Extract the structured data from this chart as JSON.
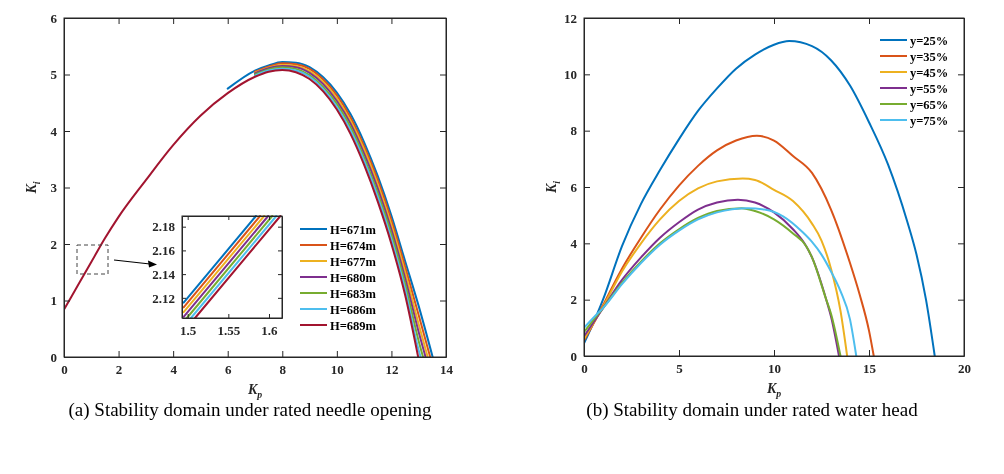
{
  "chart_data": [
    {
      "type": "line",
      "title": "(a) Stability domain under rated needle opening",
      "xlabel": "K$_{p}$",
      "ylabel": "K$_{i}$",
      "xlim": [
        0,
        14
      ],
      "xticks": [
        0,
        2,
        4,
        6,
        8,
        10,
        12,
        14
      ],
      "ylim": [
        0,
        6
      ],
      "yticks": [
        0,
        1,
        2,
        3,
        4,
        5,
        6
      ],
      "grid": false,
      "legend": "bottom right",
      "line_style": "solid",
      "marker": "none",
      "series": [
        {
          "name": "H=671m",
          "color": "#0072bd",
          "x": [
            6,
            7,
            7.5,
            8,
            8.5,
            9,
            9.5,
            10,
            10.5,
            11,
            11.5,
            12,
            12.5,
            13,
            13.51
          ],
          "values": [
            4.75,
            5.07,
            5.16,
            5.22,
            5.21,
            5.13,
            4.95,
            4.68,
            4.3,
            3.8,
            3.2,
            2.5,
            1.7,
            0.9,
            0
          ]
        },
        {
          "name": "H=674m",
          "color": "#d95319",
          "x": [
            7,
            7.5,
            8,
            8.5,
            9,
            9.5,
            10,
            10.5,
            11,
            11.5,
            12,
            12.5,
            13,
            13.42
          ],
          "values": [
            5.05,
            5.14,
            5.2,
            5.18,
            5.1,
            4.91,
            4.63,
            4.24,
            3.73,
            3.13,
            2.42,
            1.6,
            0.74,
            0
          ]
        },
        {
          "name": "H=677m",
          "color": "#edb120",
          "x": [
            7,
            7.5,
            8,
            8.5,
            9,
            9.5,
            10,
            10.5,
            11,
            11.5,
            12,
            12.5,
            13,
            13.33
          ],
          "values": [
            5.03,
            5.12,
            5.17,
            5.15,
            5.06,
            4.87,
            4.58,
            4.18,
            3.67,
            3.05,
            2.33,
            1.5,
            0.58,
            0
          ]
        },
        {
          "name": "H=680m",
          "color": "#7e2f8e",
          "x": [
            7,
            7.5,
            8,
            8.5,
            9,
            9.5,
            10,
            10.5,
            11,
            11.5,
            12,
            12.5,
            13,
            13.25
          ],
          "values": [
            5.02,
            5.11,
            5.15,
            5.13,
            5.03,
            4.83,
            4.53,
            4.13,
            3.6,
            2.98,
            2.25,
            1.4,
            0.44,
            0
          ]
        },
        {
          "name": "H=683m",
          "color": "#77ac30",
          "x": [
            7,
            7.5,
            8,
            8.5,
            9,
            9.5,
            10,
            10.5,
            11,
            11.5,
            12,
            12.5,
            13,
            13.16
          ],
          "values": [
            5,
            5.09,
            5.13,
            5.1,
            4.99,
            4.78,
            4.48,
            4.07,
            3.53,
            2.9,
            2.17,
            1.3,
            0.28,
            0
          ]
        },
        {
          "name": "H=686m",
          "color": "#4dbeee",
          "x": [
            7,
            7.5,
            8,
            8.5,
            9,
            9.5,
            10,
            10.5,
            11,
            11.5,
            12,
            12.5,
            13,
            13.07
          ],
          "values": [
            4.98,
            5.07,
            5.1,
            5.07,
            4.96,
            4.74,
            4.43,
            4.01,
            3.47,
            2.83,
            2.08,
            1.2,
            0.12,
            0
          ]
        },
        {
          "name": "H=689m",
          "color": "#a2142f",
          "x": [
            0,
            0.5,
            1,
            1.5,
            2,
            3,
            4,
            5,
            6,
            7,
            7.5,
            8,
            8.5,
            9,
            9.5,
            10,
            10.5,
            11,
            11.5,
            12,
            12.5,
            12.98
          ],
          "values": [
            0.84,
            1.26,
            1.68,
            2.1,
            2.48,
            3.13,
            3.75,
            4.27,
            4.67,
            4.96,
            5.05,
            5.08,
            5.04,
            4.92,
            4.7,
            4.38,
            3.95,
            3.4,
            2.75,
            2,
            1.1,
            0
          ]
        }
      ]
    },
    {
      "type": "line",
      "xlim": [
        1.493,
        1.616
      ],
      "xticks": [
        1.5,
        1.55,
        1.6
      ],
      "ylim": [
        2.103,
        2.189
      ],
      "yticks": [
        2.12,
        2.14,
        2.16,
        2.18
      ],
      "grid": false,
      "legend": false,
      "line_style": "solid",
      "marker": "none",
      "series": [
        {
          "color": "#0072bd",
          "x": [
            1.495,
            1.584
          ],
          "values": [
            2.116,
            2.189
          ]
        },
        {
          "color": "#d95319",
          "x": [
            1.495,
            1.589
          ],
          "values": [
            2.112,
            2.189
          ]
        },
        {
          "color": "#edb120",
          "x": [
            1.495,
            1.594
          ],
          "values": [
            2.108,
            2.189
          ]
        },
        {
          "color": "#7e2f8e",
          "x": [
            1.495,
            1.599
          ],
          "values": [
            2.104,
            2.189
          ]
        },
        {
          "color": "#77ac30",
          "x": [
            1.499,
            1.604
          ],
          "values": [
            2.103,
            2.189
          ]
        },
        {
          "color": "#4dbeee",
          "x": [
            1.504,
            1.609
          ],
          "values": [
            2.103,
            2.189
          ]
        },
        {
          "color": "#a2142f",
          "x": [
            1.509,
            1.614
          ],
          "values": [
            2.103,
            2.189
          ]
        }
      ]
    },
    {
      "type": "line",
      "title": "(b) Stability domain under rated water head",
      "xlabel": "K$_{p}$",
      "ylabel": "K$_{i}$",
      "xlim": [
        0,
        20
      ],
      "xticks": [
        0,
        5,
        10,
        15,
        20
      ],
      "ylim": [
        0,
        12
      ],
      "yticks": [
        0,
        2,
        4,
        6,
        8,
        10,
        12
      ],
      "grid": false,
      "legend": "top right",
      "line_style": "solid",
      "marker": "none",
      "series": [
        {
          "name": "y=25%",
          "color": "#0072bd",
          "x": [
            0,
            0.7,
            1,
            2,
            3,
            4,
            5,
            6,
            7,
            8,
            9,
            10,
            10.8,
            12,
            13,
            14,
            15,
            16,
            17,
            17.5,
            18,
            18.46
          ],
          "values": [
            0.45,
            1.5,
            2,
            3.9,
            5.4,
            6.6,
            7.7,
            8.7,
            9.5,
            10.2,
            10.7,
            11.05,
            11.18,
            11,
            10.5,
            9.6,
            8.3,
            6.8,
            4.8,
            3.6,
            2,
            0
          ]
        },
        {
          "name": "y=35%",
          "color": "#d95319",
          "x": [
            0,
            0.7,
            1,
            2,
            3,
            4,
            5,
            6,
            7,
            8,
            9.1,
            10,
            11,
            12,
            13,
            14,
            14.5,
            15,
            15.25
          ],
          "values": [
            0.55,
            1.4,
            1.8,
            3.1,
            4.2,
            5.2,
            6.05,
            6.75,
            7.3,
            7.65,
            7.82,
            7.65,
            7.1,
            6.5,
            5.2,
            3.3,
            2.2,
            0.9,
            0
          ]
        },
        {
          "name": "y=45%",
          "color": "#edb120",
          "x": [
            0,
            0.7,
            1,
            2,
            3,
            4,
            5,
            6,
            7,
            8.35,
            9,
            10,
            11,
            12,
            12.5,
            13,
            13.5,
            13.85
          ],
          "values": [
            0.6,
            1.4,
            1.75,
            3,
            4,
            4.85,
            5.5,
            5.95,
            6.2,
            6.3,
            6.25,
            5.9,
            5.5,
            4.7,
            4.1,
            3.1,
            1.6,
            0
          ]
        },
        {
          "name": "y=55%",
          "color": "#7e2f8e",
          "x": [
            0,
            0.7,
            1,
            2,
            3,
            4,
            5,
            6,
            7,
            8.1,
            9,
            10,
            11,
            11.6,
            12,
            12.75,
            13,
            13.42
          ],
          "values": [
            0.7,
            1.4,
            1.7,
            2.7,
            3.5,
            4.2,
            4.75,
            5.2,
            5.45,
            5.55,
            5.45,
            5.1,
            4.5,
            4,
            3.5,
            2,
            1.4,
            0
          ]
        },
        {
          "name": "y=65%",
          "color": "#77ac30",
          "x": [
            0,
            0.7,
            1,
            2,
            3,
            4,
            5,
            6,
            7,
            8.3,
            9,
            10,
            11,
            11.7,
            12,
            12.75,
            13,
            13.5
          ],
          "values": [
            0.85,
            1.45,
            1.7,
            2.6,
            3.35,
            4,
            4.5,
            4.9,
            5.15,
            5.25,
            5.15,
            4.85,
            4.35,
            3.9,
            3.5,
            2,
            1.5,
            0
          ]
        },
        {
          "name": "y=75%",
          "color": "#4dbeee",
          "x": [
            0,
            0.7,
            1,
            2,
            3,
            4,
            5,
            6,
            7,
            8.6,
            9.5,
            10.5,
            11.5,
            12,
            12.5,
            13,
            13.5,
            14,
            14.33
          ],
          "values": [
            1,
            1.5,
            1.7,
            2.55,
            3.3,
            3.95,
            4.45,
            4.85,
            5.1,
            5.25,
            5.2,
            4.95,
            4.4,
            4.05,
            3.6,
            3,
            2.3,
            1.3,
            0
          ]
        }
      ]
    }
  ]
}
